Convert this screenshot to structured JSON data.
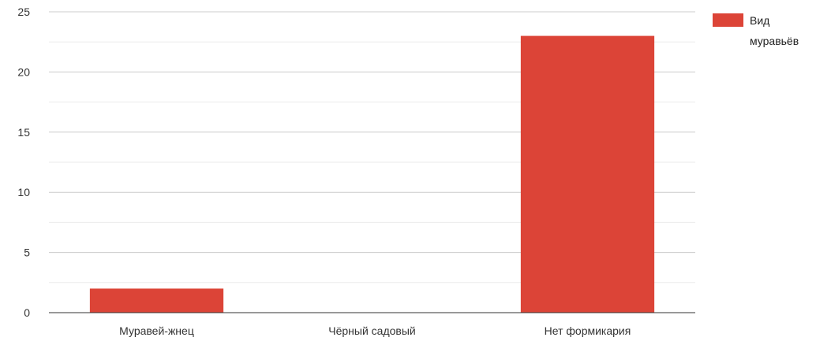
{
  "chart_data": {
    "type": "bar",
    "categories": [
      "Муравей-жнец",
      "Чёрный садовый",
      "Нет формикария"
    ],
    "series": [
      {
        "name": "Вид муравьёв",
        "values": [
          2,
          0,
          23
        ],
        "color": "#dc4437"
      }
    ],
    "title": "",
    "xlabel": "",
    "ylabel": "",
    "ylim": [
      0,
      25
    ],
    "yticks": [
      0,
      5,
      10,
      15,
      20,
      25
    ],
    "grid": true,
    "legend_position": "top-right"
  },
  "legend": {
    "line1": "Вид",
    "line2": "муравьёв"
  },
  "colors": {
    "bar": "#dc4437",
    "gridline": "#cccccc",
    "minor_gridline": "#ebebeb",
    "baseline": "#333333",
    "tick_text": "#333333"
  }
}
